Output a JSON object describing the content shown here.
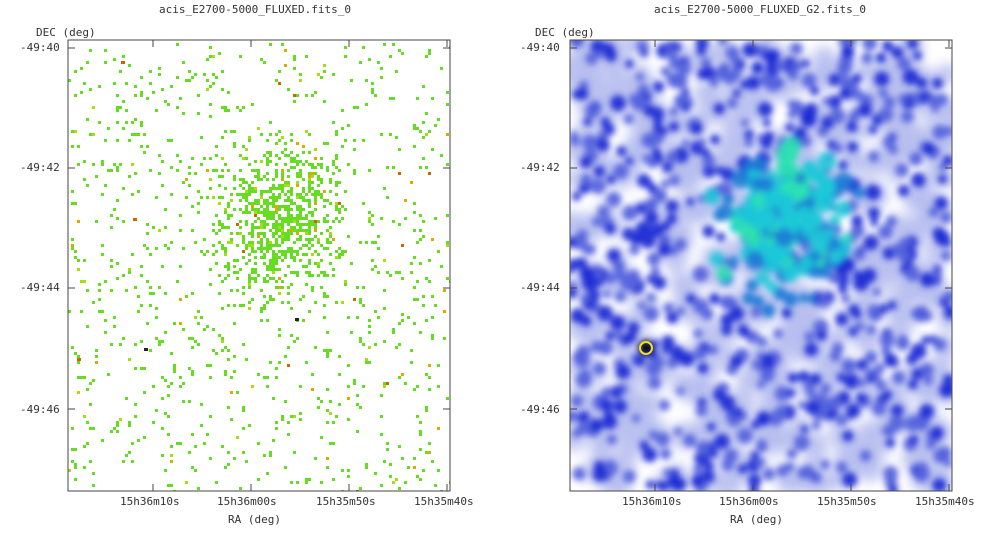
{
  "chart_data": [
    {
      "type": "heatmap",
      "title": "acis_E2700-5000_FLUXED.fits_0",
      "xlabel": "RA (deg)",
      "ylabel": "DEC (deg)",
      "x_ticks": [
        "15h36m10s",
        "15h36m00s",
        "15h35m50s",
        "15h35m40s"
      ],
      "y_ticks": [
        "-49:40",
        "-49:42",
        "-49:44",
        "-49:46"
      ],
      "palette": [
        "#66dd22",
        "#aadd11",
        "#ddaa00",
        "#cc6600",
        "#222222"
      ],
      "background": "#ffffff"
    },
    {
      "type": "heatmap",
      "title": "acis_E2700-5000_FLUXED_G2.fits_0",
      "xlabel": "RA (deg)",
      "ylabel": "DEC (deg)",
      "x_ticks": [
        "15h36m10s",
        "15h36m00s",
        "15h35m50s",
        "15h35m40s"
      ],
      "y_ticks": [
        "-49:40",
        "-49:42",
        "-49:44",
        "-49:46"
      ],
      "palette": [
        "#ffffff",
        "#b8bff0",
        "#5563dd",
        "#1a2bd4",
        "#1e7ad6",
        "#1fc8d8",
        "#2ee2b0",
        "#f0e020",
        "#111111"
      ],
      "background": "#ffffff"
    }
  ]
}
